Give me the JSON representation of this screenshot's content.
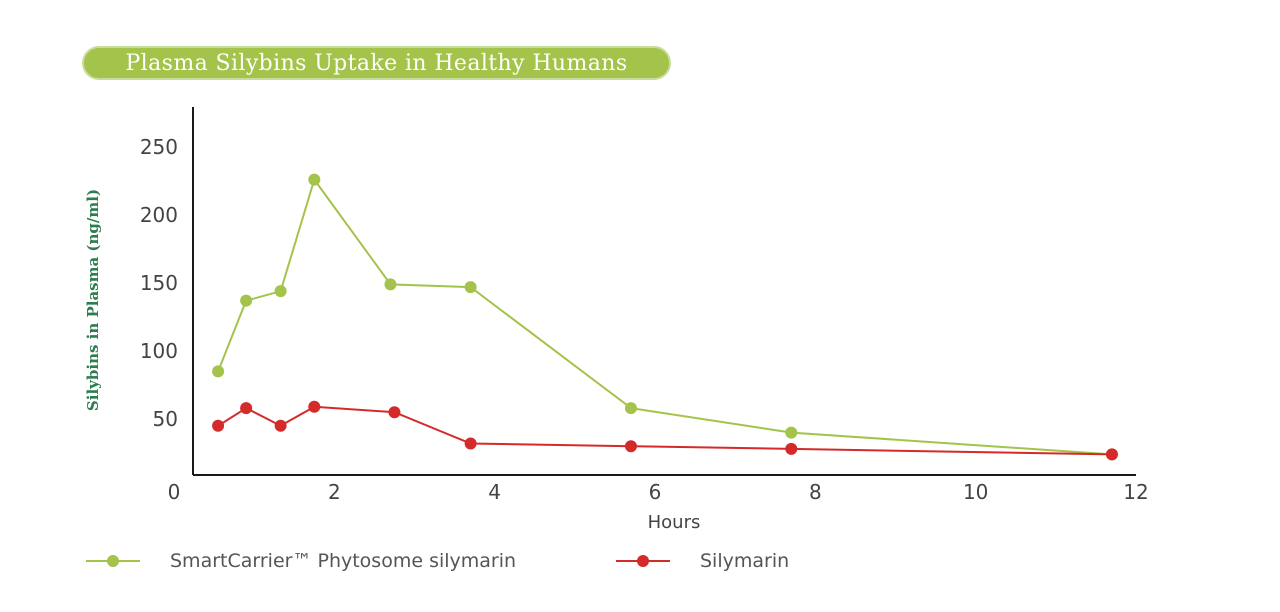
{
  "colors": {
    "title_bg": "#a4c34a",
    "title_border": "#c8dc9c",
    "ylabel": "#2e7d4f",
    "axis": "#1a1a1a",
    "tick_text": "#444444"
  },
  "chart_data": {
    "type": "line",
    "title": "Plasma Silybins Uptake in Healthy Humans",
    "xlabel": "Hours",
    "ylabel": "Silybins in Plasma  (ng/ml)",
    "xlim": [
      0,
      12
    ],
    "ylim": [
      0,
      275
    ],
    "x_ticks": [
      0,
      2,
      4,
      6,
      8,
      10,
      12
    ],
    "x_tick_labels": [
      "0",
      "2",
      "4",
      "6",
      "8",
      "10",
      "12"
    ],
    "y_ticks": [
      50,
      100,
      150,
      200,
      250
    ],
    "y_tick_labels": [
      "50",
      "100",
      "150",
      "200",
      "250"
    ],
    "grid": false,
    "legend_position": "bottom",
    "series": [
      {
        "name": "SmartCarrier™ Phytosome silymarin",
        "color": "#a4c34a",
        "x": [
          0.55,
          0.9,
          1.33,
          1.75,
          2.7,
          3.7,
          5.7,
          7.7,
          11.7
        ],
        "y": [
          85,
          137,
          144,
          226,
          149,
          147,
          58,
          40,
          24
        ]
      },
      {
        "name": "Silymarin",
        "color": "#d42a2a",
        "x": [
          0.55,
          0.9,
          1.33,
          1.75,
          2.75,
          3.7,
          5.7,
          7.7,
          11.7
        ],
        "y": [
          45,
          58,
          45,
          59,
          55,
          32,
          30,
          28,
          24
        ]
      }
    ]
  }
}
